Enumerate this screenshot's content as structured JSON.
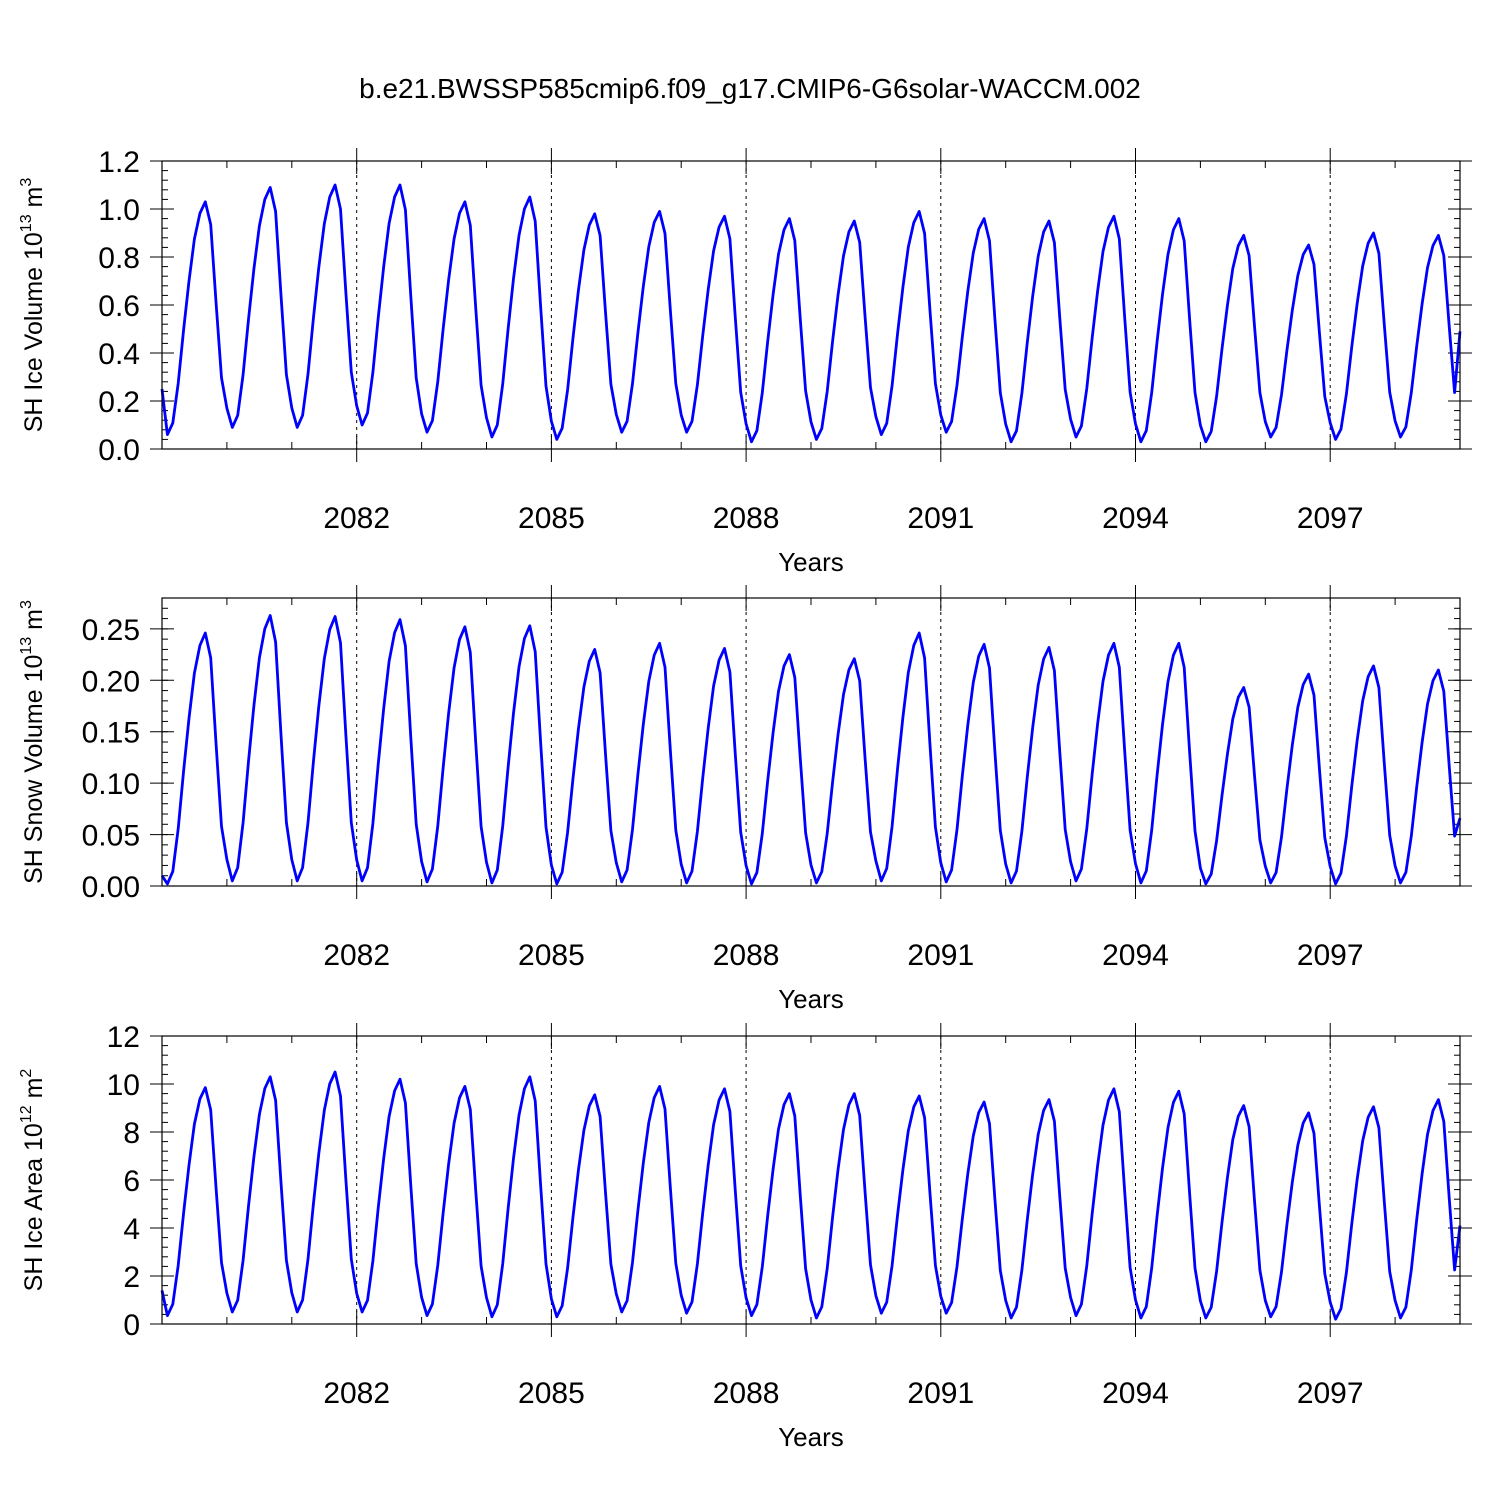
{
  "page_title": "b.e21.BWSSP585cmip6.f09_g17.CMIP6-G6solar-WACCM.002",
  "chart_data": [
    {
      "type": "line",
      "title": "b.e21.BWSSP585cmip6.f09_g17.CMIP6-G6solar-WACCM.002",
      "xlabel": "Years",
      "ylabel": "SH Ice Volume 10",
      "ylabel_exp": "13",
      "ylabel_unit": " m",
      "ylabel_unit_exp": "3",
      "xlim": [
        2079.0,
        2099.0
      ],
      "ylim": [
        0.0,
        1.2
      ],
      "yticks": [
        0.0,
        0.2,
        0.4,
        0.6,
        0.8,
        1.0,
        1.2
      ],
      "ytick_labels": [
        "0.0",
        "0.2",
        "0.4",
        "0.6",
        "0.8",
        "1.0",
        "1.2"
      ],
      "xticks": [
        2082,
        2085,
        2088,
        2091,
        2094,
        2097
      ],
      "xtick_labels": [
        "2082",
        "2085",
        "2088",
        "2091",
        "2094",
        "2097"
      ],
      "grid": "dashed vertical lines at major x ticks",
      "line_color": "#0000ff",
      "annual_max": [
        1.03,
        1.09,
        1.1,
        1.1,
        1.03,
        1.05,
        0.98,
        0.99,
        0.97,
        0.96,
        0.95,
        0.99,
        0.96,
        0.95,
        0.97,
        0.96,
        0.89,
        0.85,
        0.9,
        0.89
      ],
      "annual_min": [
        0.06,
        0.09,
        0.09,
        0.1,
        0.07,
        0.05,
        0.04,
        0.07,
        0.07,
        0.03,
        0.04,
        0.06,
        0.07,
        0.03,
        0.05,
        0.03,
        0.03,
        0.05,
        0.04,
        0.05
      ],
      "start_value": 0.25,
      "end_value": 0.49
    },
    {
      "type": "line",
      "xlabel": "Years",
      "ylabel": "SH Snow Volume 10",
      "ylabel_exp": "13",
      "ylabel_unit": " m",
      "ylabel_unit_exp": "3",
      "xlim": [
        2079.0,
        2099.0
      ],
      "ylim": [
        0.0,
        0.28
      ],
      "yticks": [
        0.0,
        0.05,
        0.1,
        0.15,
        0.2,
        0.25
      ],
      "ytick_labels": [
        "0.00",
        "0.05",
        "0.10",
        "0.15",
        "0.20",
        "0.25"
      ],
      "xticks": [
        2082,
        2085,
        2088,
        2091,
        2094,
        2097
      ],
      "xtick_labels": [
        "2082",
        "2085",
        "2088",
        "2091",
        "2094",
        "2097"
      ],
      "grid": "dashed vertical lines at major x ticks",
      "line_color": "#0000ff",
      "annual_max": [
        0.246,
        0.263,
        0.262,
        0.259,
        0.252,
        0.253,
        0.23,
        0.236,
        0.231,
        0.225,
        0.221,
        0.246,
        0.235,
        0.232,
        0.236,
        0.236,
        0.193,
        0.206,
        0.214,
        0.21
      ],
      "annual_min": [
        0.002,
        0.005,
        0.005,
        0.005,
        0.004,
        0.003,
        0.002,
        0.004,
        0.003,
        0.002,
        0.003,
        0.005,
        0.004,
        0.003,
        0.005,
        0.003,
        0.002,
        0.003,
        0.002,
        0.003
      ],
      "start_value": 0.01,
      "end_value": 0.066
    },
    {
      "type": "line",
      "xlabel": "Years",
      "ylabel": "SH Ice Area 10",
      "ylabel_exp": "12",
      "ylabel_unit": " m",
      "ylabel_unit_exp": "2",
      "xlim": [
        2079.0,
        2099.0
      ],
      "ylim": [
        0,
        12
      ],
      "yticks": [
        0,
        2,
        4,
        6,
        8,
        10,
        12
      ],
      "ytick_labels": [
        "0",
        "2",
        "4",
        "6",
        "8",
        "10",
        "12"
      ],
      "xticks": [
        2082,
        2085,
        2088,
        2091,
        2094,
        2097
      ],
      "xtick_labels": [
        "2082",
        "2085",
        "2088",
        "2091",
        "2094",
        "2097"
      ],
      "grid": "dashed vertical lines at major x ticks",
      "line_color": "#0000ff",
      "annual_max": [
        9.85,
        10.3,
        10.5,
        10.2,
        9.9,
        10.3,
        9.55,
        9.9,
        9.8,
        9.6,
        9.6,
        9.5,
        9.25,
        9.35,
        9.8,
        9.7,
        9.1,
        8.8,
        9.05,
        9.35
      ],
      "annual_min": [
        0.35,
        0.5,
        0.5,
        0.5,
        0.35,
        0.3,
        0.3,
        0.5,
        0.45,
        0.35,
        0.25,
        0.45,
        0.45,
        0.25,
        0.35,
        0.25,
        0.25,
        0.3,
        0.2,
        0.25
      ],
      "start_value": 1.4,
      "end_value": 4.1
    }
  ]
}
